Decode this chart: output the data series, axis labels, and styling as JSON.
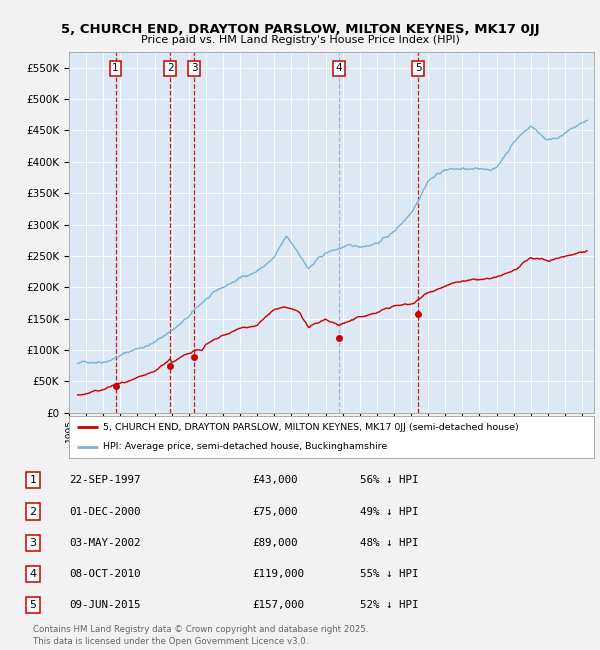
{
  "title": "5, CHURCH END, DRAYTON PARSLOW, MILTON KEYNES, MK17 0JJ",
  "subtitle": "Price paid vs. HM Land Registry's House Price Index (HPI)",
  "hpi_label": "HPI: Average price, semi-detached house, Buckinghamshire",
  "property_label": "5, CHURCH END, DRAYTON PARSLOW, MILTON KEYNES, MK17 0JJ (semi-detached house)",
  "fig_bg_color": "#f2f2f2",
  "plot_bg_color": "#dce9f5",
  "grid_color": "#ffffff",
  "red_line_color": "#cc0000",
  "blue_line_color": "#7ab3d4",
  "sale_dot_color": "#cc0000",
  "ylim": [
    0,
    575000
  ],
  "yticks": [
    0,
    50000,
    100000,
    150000,
    200000,
    250000,
    300000,
    350000,
    400000,
    450000,
    500000,
    550000
  ],
  "ytick_labels": [
    "£0",
    "£50K",
    "£100K",
    "£150K",
    "£200K",
    "£250K",
    "£300K",
    "£350K",
    "£400K",
    "£450K",
    "£500K",
    "£550K"
  ],
  "xlim_start": 1995.3,
  "xlim_end": 2025.7,
  "sale_points": [
    {
      "year": 1997.72,
      "price": 43000,
      "label": "1"
    },
    {
      "year": 2000.92,
      "price": 75000,
      "label": "2"
    },
    {
      "year": 2002.33,
      "price": 89000,
      "label": "3"
    },
    {
      "year": 2010.77,
      "price": 119000,
      "label": "4"
    },
    {
      "year": 2015.43,
      "price": 157000,
      "label": "5"
    }
  ],
  "vline_colors": [
    "#cc0000",
    "#cc0000",
    "#cc0000",
    "#aaaacc",
    "#cc0000"
  ],
  "table_rows": [
    {
      "num": "1",
      "date": "22-SEP-1997",
      "price": "£43,000",
      "hpi": "56% ↓ HPI"
    },
    {
      "num": "2",
      "date": "01-DEC-2000",
      "price": "£75,000",
      "hpi": "49% ↓ HPI"
    },
    {
      "num": "3",
      "date": "03-MAY-2002",
      "price": "£89,000",
      "hpi": "48% ↓ HPI"
    },
    {
      "num": "4",
      "date": "08-OCT-2010",
      "price": "£119,000",
      "hpi": "55% ↓ HPI"
    },
    {
      "num": "5",
      "date": "09-JUN-2015",
      "price": "£157,000",
      "hpi": "52% ↓ HPI"
    }
  ],
  "footer": "Contains HM Land Registry data © Crown copyright and database right 2025.\nThis data is licensed under the Open Government Licence v3.0."
}
